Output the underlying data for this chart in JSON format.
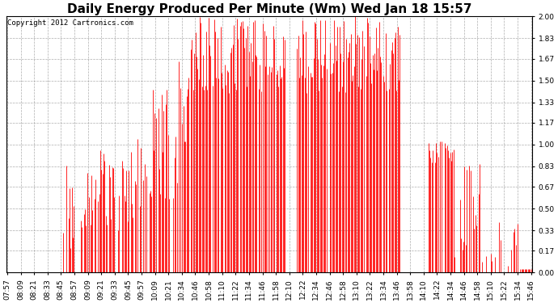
{
  "title": "Daily Energy Produced Per Minute (Wm) Wed Jan 18 15:57",
  "copyright": "Copyright 2012 Cartronics.com",
  "bar_color": "#ff0000",
  "background_color": "#ffffff",
  "plot_bg_color": "#ffffff",
  "grid_color": "#999999",
  "ylim": [
    0.0,
    2.0
  ],
  "yticks": [
    0.0,
    0.17,
    0.33,
    0.5,
    0.67,
    0.83,
    1.0,
    1.17,
    1.33,
    1.5,
    1.67,
    1.83,
    2.0
  ],
  "xtick_labels": [
    "07:57",
    "08:09",
    "08:21",
    "08:33",
    "08:45",
    "08:57",
    "09:09",
    "09:21",
    "09:33",
    "09:45",
    "09:57",
    "10:09",
    "10:21",
    "10:34",
    "10:46",
    "10:58",
    "11:10",
    "11:22",
    "11:34",
    "11:46",
    "11:58",
    "12:10",
    "12:22",
    "12:34",
    "12:46",
    "12:58",
    "13:10",
    "13:22",
    "13:34",
    "13:46",
    "13:58",
    "14:10",
    "14:22",
    "14:34",
    "14:46",
    "14:58",
    "15:10",
    "15:22",
    "15:34",
    "15:46"
  ],
  "title_fontsize": 11,
  "copyright_fontsize": 6.5,
  "tick_fontsize": 6.5,
  "figsize": [
    6.9,
    3.75
  ],
  "dpi": 100
}
